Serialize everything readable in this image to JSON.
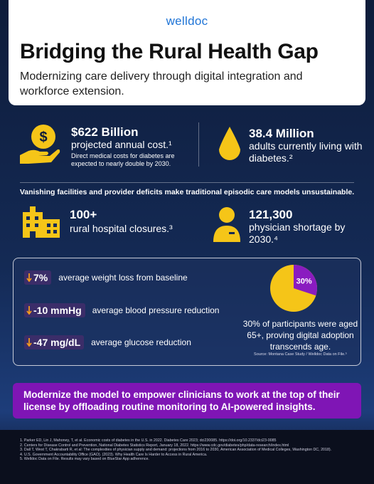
{
  "header": {
    "logo": "welldoc",
    "title": "Bridging the Rural Health Gap",
    "subtitle": "Modernizing care delivery through digital integration and workforce extension."
  },
  "stats": [
    {
      "value": "$622 Billion",
      "label": "projected annual cost.¹",
      "note": "Direct medical costs for diabetes are expected to nearly double by 2030."
    },
    {
      "value": "38.4 Million",
      "label": "adults currently living with diabetes.²"
    }
  ],
  "statement": "Vanishing facilities and provider deficits make traditional episodic care models unsustainable.",
  "shortages": [
    {
      "value": "100+",
      "label": "rural hospital closures.³"
    },
    {
      "value": "121,300",
      "label": "physician shortage by 2030.⁴"
    }
  ],
  "outcomes": [
    {
      "badge": "7%",
      "text": "average weight loss from baseline"
    },
    {
      "badge": "-10 mmHg",
      "text": "average blood pressure reduction"
    },
    {
      "badge": "-47 mg/dL",
      "text": "average glucose reduction"
    }
  ],
  "pie": {
    "value": 30,
    "label": "30%",
    "caption": "30% of participants were aged 65+, proving digital adoption transcends age.",
    "source": "Source: Montana Case Study / Welldoc Data on File.⁵"
  },
  "banner": "Modernize the model to empower clinicians to work at the top of their license by offloading routine monitoring to AI-powered insights.",
  "footnotes": [
    "1. Parker ED, Lin J, Mahoney, T, et al. Economic costs of diabetes in the U.S. in 2022. Diabetes Care 2023; dci230085. https://doi.org/10.2337/dci23-0085",
    "2. Centers for Disease Control and Prevention, National Diabetes Statistics Report, January 18, 2022. https://www.cdc.gov/diabetes/php/data-research/index.html",
    "3. Dall T, West T, Chakrabarti R, et al: The complexities of physician supply and demand: projections from 2016 to 2030, American Association of Medical Colleges, Washington DC, 2018).",
    "4. U.S. Government Accountability Office (GAO). (2023). Why Health Care Is Harder to Access in Rural America.",
    "5. Welldoc Data on File. Results may vary based on BlueStar App adherence."
  ]
}
